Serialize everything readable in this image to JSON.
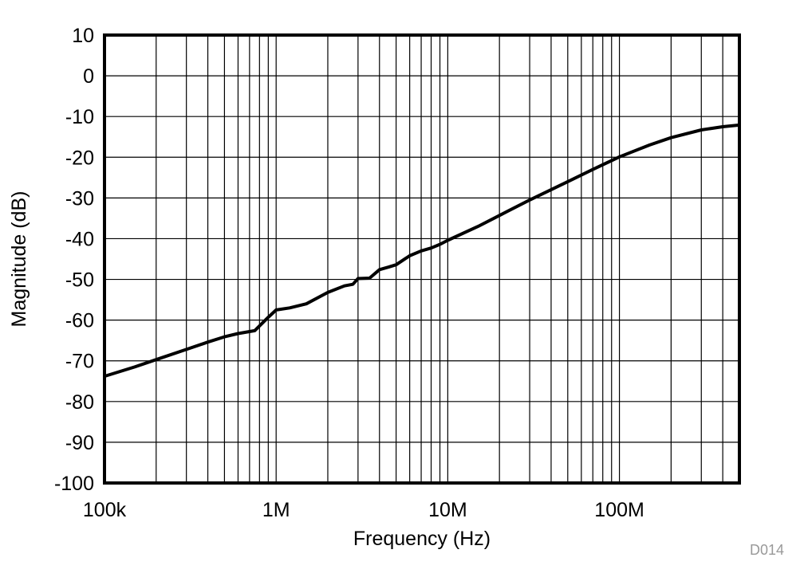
{
  "chart_data": {
    "type": "line",
    "title": "",
    "xlabel": "Frequency (Hz)",
    "ylabel": "Magnitude (dB)",
    "xscale": "log",
    "xlim": [
      100000,
      500000000
    ],
    "ylim": [
      -100,
      10
    ],
    "grid": true,
    "legend": null,
    "x_tick_labels": [
      "100k",
      "1M",
      "10M",
      "100M"
    ],
    "x_tick_values": [
      100000,
      1000000,
      10000000,
      100000000
    ],
    "y_ticks": [
      10,
      0,
      -10,
      -20,
      -30,
      -40,
      -50,
      -60,
      -70,
      -80,
      -90,
      -100
    ],
    "y_tick_labels": [
      "10",
      "0",
      "-10",
      "-20",
      "-30",
      "-40",
      "-50",
      "-60",
      "-70",
      "-80",
      "-90",
      "-100"
    ],
    "annotation": "D014",
    "series": [
      {
        "name": "Magnitude",
        "color": "#000000",
        "x": [
          100000,
          150000,
          200000,
          300000,
          400000,
          500000,
          600000,
          750000,
          900000,
          1000000,
          1200000,
          1500000,
          2000000,
          2500000,
          2800000,
          3000000,
          3500000,
          4000000,
          4500000,
          5000000,
          6000000,
          7000000,
          8000000,
          9000000,
          10000000,
          15000000,
          20000000,
          30000000,
          50000000,
          70000000,
          100000000,
          150000000,
          200000000,
          300000000,
          400000000,
          500000000
        ],
        "values": [
          -73.8,
          -71.5,
          -69.7,
          -67.2,
          -65.4,
          -64.1,
          -63.3,
          -62.6,
          -59.3,
          -57.5,
          -57.0,
          -56.0,
          -53.2,
          -51.6,
          -51.2,
          -49.8,
          -49.7,
          -47.6,
          -47.0,
          -46.4,
          -44.2,
          -43.0,
          -42.3,
          -41.4,
          -40.4,
          -37.0,
          -34.3,
          -30.5,
          -26.0,
          -23.0,
          -19.9,
          -17.0,
          -15.2,
          -13.3,
          -12.5,
          -12.1
        ]
      }
    ]
  }
}
